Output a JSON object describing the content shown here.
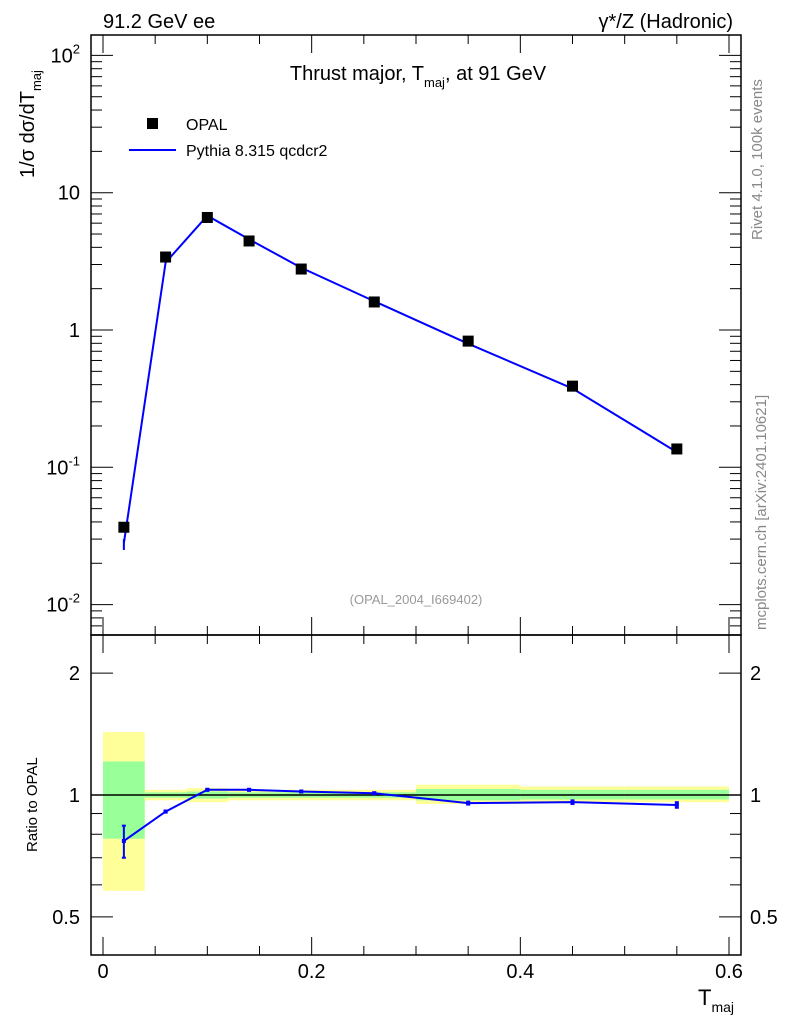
{
  "header": {
    "left": "91.2 GeV ee",
    "right": "γ*/Z (Hadronic)"
  },
  "side_labels": {
    "rivet": "Rivet 4.1.0,  100k events",
    "mcplots": "mcplots.cern.ch [arXiv:2401.10621]"
  },
  "analysis_id": "(OPAL_2004_I669402)",
  "colors": {
    "data": "#000000",
    "mc": "#0000ff",
    "band_total": "#ffff99",
    "band_stat": "#99ff99"
  },
  "chart_data": [
    {
      "type": "scatter",
      "title": "Thrust major, T_maj, at 91 GeV",
      "title_main": "Thrust major, T",
      "title_sub": "maj",
      "title_tail": ", at 91 GeV",
      "ylabel": "1/σ  dσ/dT",
      "ylabel_sub": "maj",
      "yscale": "log",
      "ylim": [
        0.006,
        130
      ],
      "xlim": [
        -0.02,
        0.62
      ],
      "yticks": [
        {
          "v": 0.01,
          "label": "10",
          "sup": "-2"
        },
        {
          "v": 0.1,
          "label": "10",
          "sup": "-1"
        },
        {
          "v": 1,
          "label": "1",
          "sup": ""
        },
        {
          "v": 10,
          "label": "10",
          "sup": ""
        },
        {
          "v": 100,
          "label": "10",
          "sup": "2"
        }
      ],
      "legend": {
        "placement": "top-left",
        "entries": [
          "OPAL",
          "Pythia 8.315 qcdcr2"
        ]
      },
      "x": [
        0.02,
        0.06,
        0.1,
        0.14,
        0.19,
        0.26,
        0.35,
        0.45,
        0.55
      ],
      "series": [
        {
          "name": "OPAL",
          "values": [
            0.0366,
            3.4,
            6.6,
            4.45,
            2.78,
            1.6,
            0.83,
            0.39,
            0.136
          ]
        },
        {
          "name": "Pythia 8.315 qcdcr2",
          "values": [
            0.028,
            3.1,
            6.8,
            4.58,
            2.84,
            1.62,
            0.795,
            0.375,
            0.129
          ],
          "err_low": [
            0.025,
            3.08,
            6.78,
            4.56,
            2.83,
            1.61,
            0.79,
            0.372,
            0.127
          ],
          "err_high": [
            0.03,
            3.12,
            6.82,
            4.6,
            2.85,
            1.63,
            0.8,
            0.378,
            0.131
          ]
        }
      ]
    },
    {
      "type": "line",
      "ylabel": "Ratio to OPAL",
      "xlabel": "T",
      "xlabel_sub": "maj",
      "yscale": "log",
      "ylim": [
        0.45,
        2.4
      ],
      "xlim": [
        -0.02,
        0.62
      ],
      "yticks": [
        {
          "v": 0.5,
          "label": "0.5"
        },
        {
          "v": 1,
          "label": "1"
        },
        {
          "v": 2,
          "label": "2"
        }
      ],
      "xticks": [
        {
          "v": 0,
          "label": "0"
        },
        {
          "v": 0.2,
          "label": "0.2"
        },
        {
          "v": 0.4,
          "label": "0.4"
        },
        {
          "v": 0.6,
          "label": "0.6"
        }
      ],
      "bins": [
        [
          0,
          0.04
        ],
        [
          0.04,
          0.08
        ],
        [
          0.08,
          0.12
        ],
        [
          0.12,
          0.16
        ],
        [
          0.16,
          0.22
        ],
        [
          0.22,
          0.3
        ],
        [
          0.3,
          0.4
        ],
        [
          0.4,
          0.5
        ],
        [
          0.5,
          0.6
        ]
      ],
      "band_total": [
        [
          0.58,
          1.43
        ],
        [
          0.97,
          1.03
        ],
        [
          0.96,
          1.04
        ],
        [
          0.97,
          1.03
        ],
        [
          0.97,
          1.03
        ],
        [
          0.97,
          1.03
        ],
        [
          0.95,
          1.06
        ],
        [
          0.96,
          1.05
        ],
        [
          0.96,
          1.05
        ]
      ],
      "band_stat": [
        [
          0.78,
          1.21
        ],
        [
          0.985,
          1.015
        ],
        [
          0.98,
          1.02
        ],
        [
          0.985,
          1.015
        ],
        [
          0.985,
          1.015
        ],
        [
          0.985,
          1.015
        ],
        [
          0.97,
          1.035
        ],
        [
          0.975,
          1.03
        ],
        [
          0.975,
          1.03
        ]
      ],
      "x": [
        0.02,
        0.06,
        0.1,
        0.14,
        0.19,
        0.26,
        0.35,
        0.45,
        0.55
      ],
      "ratio": [
        0.77,
        0.91,
        1.03,
        1.03,
        1.02,
        1.01,
        0.955,
        0.96,
        0.945
      ],
      "ratio_err": [
        0.07,
        0.005,
        0.005,
        0.005,
        0.005,
        0.005,
        0.008,
        0.01,
        0.015
      ]
    }
  ]
}
